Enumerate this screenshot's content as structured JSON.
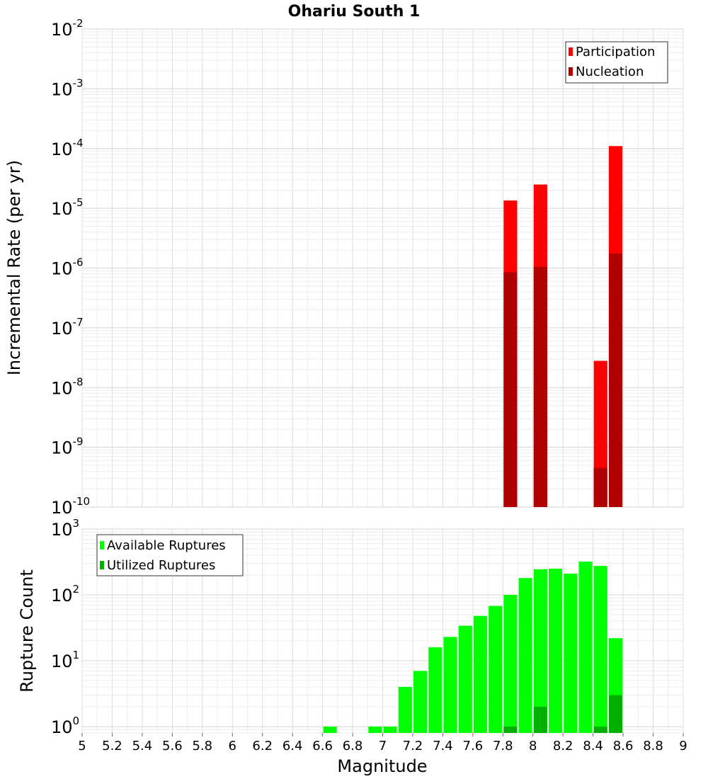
{
  "chart_data": [
    {
      "type": "bar",
      "title": "Ohariu South 1",
      "xlabel": "Magnitude",
      "ylabel": "Incremental Rate (per yr)",
      "yscale": "log",
      "xlim": [
        5,
        9
      ],
      "ylim": [
        1e-10,
        0.01
      ],
      "bar_width": 0.09,
      "legend": {
        "position": "top-right",
        "entries": [
          "Participation",
          "Nucleation"
        ]
      },
      "y_ticks": [
        {
          "base": "10",
          "exp": "-10",
          "value": 1e-10
        },
        {
          "base": "10",
          "exp": "-9",
          "value": 1e-09
        },
        {
          "base": "10",
          "exp": "-8",
          "value": 1e-08
        },
        {
          "base": "10",
          "exp": "-7",
          "value": 1e-07
        },
        {
          "base": "10",
          "exp": "-6",
          "value": 1e-06
        },
        {
          "base": "10",
          "exp": "-5",
          "value": 1e-05
        },
        {
          "base": "10",
          "exp": "-4",
          "value": 0.0001
        },
        {
          "base": "10",
          "exp": "-3",
          "value": 0.001
        },
        {
          "base": "10",
          "exp": "-2",
          "value": 0.01
        }
      ],
      "series": [
        {
          "name": "Participation",
          "color": "#ff0000",
          "x": [
            7.85,
            8.05,
            8.45,
            8.55
          ],
          "values": [
            1.35e-05,
            2.5e-05,
            2.8e-08,
            0.00011
          ]
        },
        {
          "name": "Nucleation",
          "color": "#b00000",
          "x": [
            7.85,
            8.05,
            8.45,
            8.55
          ],
          "values": [
            8.5e-07,
            1.05e-06,
            4.5e-10,
            1.75e-06
          ]
        }
      ]
    },
    {
      "type": "bar",
      "title": "",
      "xlabel": "Magnitude",
      "ylabel": "Rupture Count",
      "yscale": "log",
      "xlim": [
        5,
        9
      ],
      "ylim": [
        0.8,
        1000
      ],
      "bar_width": 0.09,
      "legend": {
        "position": "top-left",
        "entries": [
          "Available Ruptures",
          "Utilized Ruptures"
        ]
      },
      "y_ticks": [
        {
          "base": "10",
          "exp": "0",
          "value": 1
        },
        {
          "base": "10",
          "exp": "1",
          "value": 10
        },
        {
          "base": "10",
          "exp": "2",
          "value": 100
        },
        {
          "base": "10",
          "exp": "3",
          "value": 1000
        }
      ],
      "x_ticks": [
        "5",
        "5.2",
        "5.4",
        "5.6",
        "5.8",
        "6",
        "6.2",
        "6.4",
        "6.6",
        "6.8",
        "7",
        "7.2",
        "7.4",
        "7.6",
        "7.8",
        "8",
        "8.2",
        "8.4",
        "8.6",
        "8.8",
        "9"
      ],
      "series": [
        {
          "name": "Available Ruptures",
          "color": "#00ff00",
          "x": [
            6.65,
            6.95,
            7.05,
            7.15,
            7.25,
            7.35,
            7.45,
            7.55,
            7.65,
            7.75,
            7.85,
            7.95,
            8.05,
            8.15,
            8.25,
            8.35,
            8.45,
            8.55
          ],
          "values": [
            1,
            1,
            1,
            4,
            7,
            16,
            23,
            34,
            48,
            68,
            100,
            180,
            245,
            250,
            210,
            320,
            275,
            22
          ]
        },
        {
          "name": "Utilized Ruptures",
          "color": "#00b000",
          "x": [
            7.85,
            8.05,
            8.45,
            8.55
          ],
          "values": [
            1,
            2,
            1,
            3
          ]
        }
      ]
    }
  ]
}
